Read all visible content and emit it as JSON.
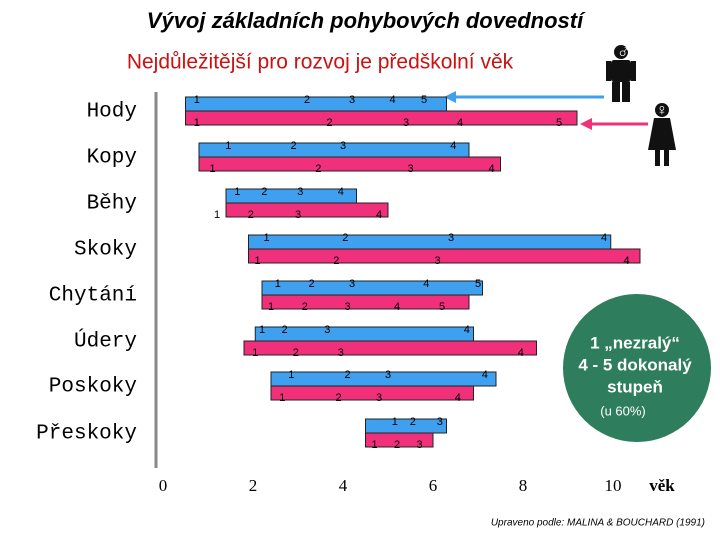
{
  "chart_data": {
    "type": "stage-bars",
    "title": "Vývoj základních pohybových dovedností",
    "subtitle": "Nejdůležitější pro rozvoj je předškolní věk",
    "categories": [
      "Hody",
      "Kopy",
      "Běhy",
      "Skoky",
      "Chytání",
      "Údery",
      "Poskoky",
      "Přeskoky"
    ],
    "xlabel": "věk",
    "xlim": [
      0,
      11
    ],
    "xticks": [
      0,
      2,
      4,
      6,
      8,
      10
    ],
    "series": [
      {
        "color": "#3fa0f0",
        "starts": [
          0.5,
          0.8,
          1.4,
          1.9,
          2.2,
          2.05,
          2.4,
          4.5
        ],
        "ends": [
          6.3,
          6.8,
          4.3,
          9.95,
          7.1,
          6.9,
          7.4,
          6.3
        ],
        "stages": [
          [
            {
              "stage": 1,
              "age": 0.75
            },
            {
              "stage": 2,
              "age": 3.2
            },
            {
              "stage": 3,
              "age": 4.2
            },
            {
              "stage": 4,
              "age": 5.1
            },
            {
              "stage": 5,
              "age": 5.8
            }
          ],
          [
            {
              "stage": 1,
              "age": 1.45
            },
            {
              "stage": 2,
              "age": 2.9
            },
            {
              "stage": 3,
              "age": 4.0
            },
            {
              "stage": 4,
              "age": 6.45
            }
          ],
          [
            {
              "stage": 1,
              "age": 1.65
            },
            {
              "stage": 2,
              "age": 2.25
            },
            {
              "stage": 3,
              "age": 3.05
            },
            {
              "stage": 4,
              "age": 3.95
            }
          ],
          [
            {
              "stage": 1,
              "age": 2.3
            },
            {
              "stage": 2,
              "age": 4.05
            },
            {
              "stage": 3,
              "age": 6.4
            },
            {
              "stage": 4,
              "age": 9.8
            }
          ],
          [
            {
              "stage": 1,
              "age": 2.55
            },
            {
              "stage": 2,
              "age": 3.3
            },
            {
              "stage": 3,
              "age": 4.2
            },
            {
              "stage": 4,
              "age": 5.85
            },
            {
              "stage": 5,
              "age": 7.0
            }
          ],
          [
            {
              "stage": 1,
              "age": 2.2
            },
            {
              "stage": 2,
              "age": 2.7
            },
            {
              "stage": 3,
              "age": 3.65
            },
            {
              "stage": 4,
              "age": 6.75
            }
          ],
          [
            {
              "stage": 1,
              "age": 2.85
            },
            {
              "stage": 2,
              "age": 4.1
            },
            {
              "stage": 3,
              "age": 5.0
            },
            {
              "stage": 4,
              "age": 7.15
            }
          ],
          [
            {
              "stage": 1,
              "age": 5.15
            },
            {
              "stage": 2,
              "age": 5.55
            },
            {
              "stage": 3,
              "age": 6.15
            }
          ]
        ]
      },
      {
        "color": "#f0307a",
        "starts": [
          0.5,
          0.8,
          1.4,
          1.9,
          2.2,
          1.8,
          2.4,
          4.5
        ],
        "ends": [
          9.2,
          7.5,
          5.0,
          10.6,
          6.8,
          8.3,
          6.9,
          6.0
        ],
        "stages": [
          [
            {
              "stage": 1,
              "age": 0.75
            },
            {
              "stage": 2,
              "age": 3.7
            },
            {
              "stage": 3,
              "age": 5.4
            },
            {
              "stage": 4,
              "age": 6.6
            },
            {
              "stage": 5,
              "age": 8.8
            }
          ],
          [
            {
              "stage": 1,
              "age": 1.1
            },
            {
              "stage": 2,
              "age": 3.45
            },
            {
              "stage": 3,
              "age": 5.5
            },
            {
              "stage": 4,
              "age": 7.3
            }
          ],
          [
            {
              "stage": 1,
              "age": 1.2
            },
            {
              "stage": 2,
              "age": 1.95
            },
            {
              "stage": 3,
              "age": 3.0
            },
            {
              "stage": 4,
              "age": 4.8
            }
          ],
          [
            {
              "stage": 1,
              "age": 2.1
            },
            {
              "stage": 2,
              "age": 3.85
            },
            {
              "stage": 3,
              "age": 6.1
            },
            {
              "stage": 4,
              "age": 10.3
            }
          ],
          [
            {
              "stage": 1,
              "age": 2.4
            },
            {
              "stage": 2,
              "age": 3.15
            },
            {
              "stage": 3,
              "age": 4.1
            },
            {
              "stage": 4,
              "age": 5.2
            },
            {
              "stage": 5,
              "age": 6.2
            }
          ],
          [
            {
              "stage": 1,
              "age": 2.05
            },
            {
              "stage": 2,
              "age": 2.95
            },
            {
              "stage": 3,
              "age": 3.95
            },
            {
              "stage": 4,
              "age": 7.95
            }
          ],
          [
            {
              "stage": 1,
              "age": 2.65
            },
            {
              "stage": 2,
              "age": 3.9
            },
            {
              "stage": 3,
              "age": 4.8
            },
            {
              "stage": 4,
              "age": 6.55
            }
          ],
          [
            {
              "stage": 1,
              "age": 4.7
            },
            {
              "stage": 2,
              "age": 5.2
            },
            {
              "stage": 3,
              "age": 5.7
            }
          ]
        ]
      }
    ],
    "callout": [
      "1 „nezralý“",
      "4 - 5 dokonalý",
      "stupeň",
      "(u 60%)"
    ],
    "source": "Upraveno podle: MALINA & BOUCHARD (1991)"
  }
}
